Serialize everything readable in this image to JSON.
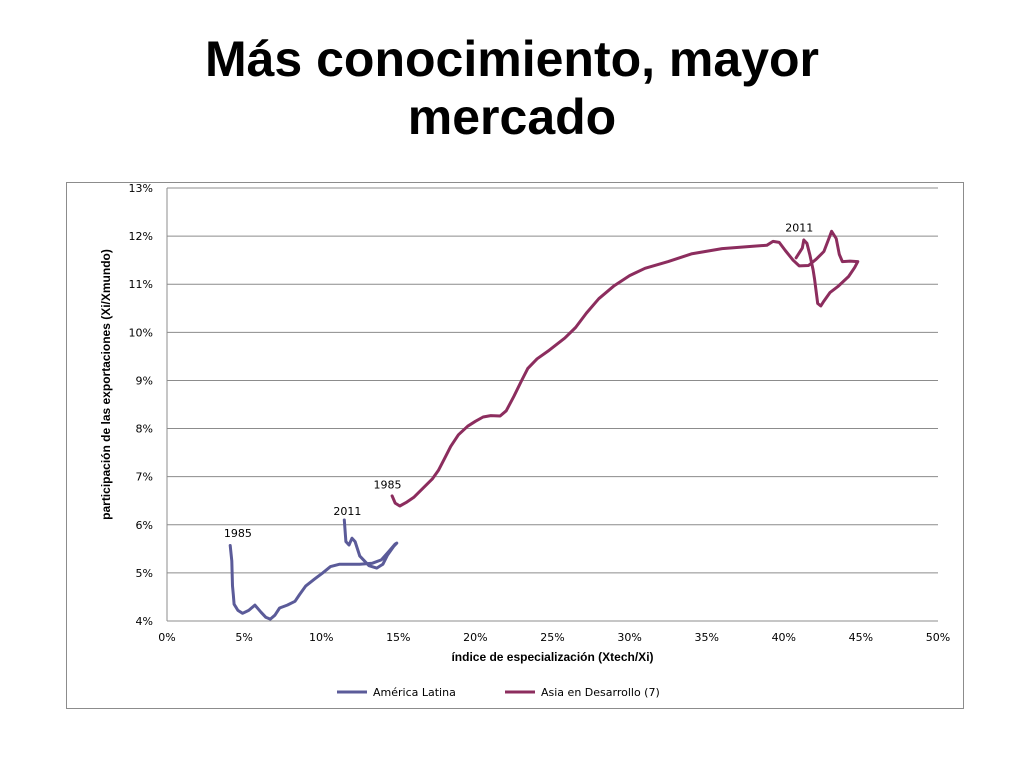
{
  "slide": {
    "title_line1": "Más conocimiento, mayor",
    "title_line2": "mercado"
  },
  "chart_data": {
    "type": "line",
    "xlabel": "índice de especialización (Xtech/Xi)",
    "ylabel": "participación de las exportaciones (Xi/Xmundo)",
    "xlim": [
      0,
      0.5
    ],
    "ylim": [
      0.04,
      0.13
    ],
    "x_ticks": [
      {
        "value": 0.0,
        "label": "0%"
      },
      {
        "value": 0.05,
        "label": "5%"
      },
      {
        "value": 0.1,
        "label": "10%"
      },
      {
        "value": 0.15,
        "label": "15%"
      },
      {
        "value": 0.2,
        "label": "20%"
      },
      {
        "value": 0.25,
        "label": "25%"
      },
      {
        "value": 0.3,
        "label": "30%"
      },
      {
        "value": 0.35,
        "label": "35%"
      },
      {
        "value": 0.4,
        "label": "40%"
      },
      {
        "value": 0.45,
        "label": "45%"
      },
      {
        "value": 0.5,
        "label": "50%"
      }
    ],
    "y_ticks": [
      {
        "value": 0.04,
        "label": "4%"
      },
      {
        "value": 0.05,
        "label": "5%"
      },
      {
        "value": 0.06,
        "label": "6%"
      },
      {
        "value": 0.07,
        "label": "7%"
      },
      {
        "value": 0.08,
        "label": "8%"
      },
      {
        "value": 0.09,
        "label": "9%"
      },
      {
        "value": 0.1,
        "label": "10%"
      },
      {
        "value": 0.11,
        "label": "11%"
      },
      {
        "value": 0.12,
        "label": "12%"
      },
      {
        "value": 0.13,
        "label": "13%"
      }
    ],
    "grid": "horizontal",
    "legend_position": "bottom",
    "series": [
      {
        "name": "América Latina",
        "color": "#5b5b99",
        "points": [
          [
            0.041,
            0.0557
          ],
          [
            0.042,
            0.0525
          ],
          [
            0.0425,
            0.0473
          ],
          [
            0.043,
            0.0455
          ],
          [
            0.0435,
            0.0435
          ],
          [
            0.046,
            0.0422
          ],
          [
            0.049,
            0.0416
          ],
          [
            0.053,
            0.0422
          ],
          [
            0.057,
            0.0433
          ],
          [
            0.061,
            0.0418
          ],
          [
            0.064,
            0.0408
          ],
          [
            0.067,
            0.0404
          ],
          [
            0.07,
            0.0412
          ],
          [
            0.073,
            0.0427
          ],
          [
            0.078,
            0.0433
          ],
          [
            0.083,
            0.0441
          ],
          [
            0.086,
            0.0455
          ],
          [
            0.09,
            0.0473
          ],
          [
            0.096,
            0.0488
          ],
          [
            0.101,
            0.05
          ],
          [
            0.106,
            0.0513
          ],
          [
            0.112,
            0.0518
          ],
          [
            0.118,
            0.0518
          ],
          [
            0.125,
            0.0518
          ],
          [
            0.133,
            0.052
          ],
          [
            0.139,
            0.0527
          ],
          [
            0.144,
            0.0545
          ],
          [
            0.148,
            0.056
          ],
          [
            0.149,
            0.0562
          ],
          [
            0.147,
            0.0555
          ],
          [
            0.143,
            0.0537
          ],
          [
            0.14,
            0.0518
          ],
          [
            0.136,
            0.051
          ],
          [
            0.131,
            0.0515
          ],
          [
            0.125,
            0.0535
          ],
          [
            0.122,
            0.0565
          ],
          [
            0.12,
            0.0572
          ],
          [
            0.118,
            0.0558
          ],
          [
            0.116,
            0.0565
          ],
          [
            0.115,
            0.061
          ]
        ]
      },
      {
        "name": "Asia en Desarrollo (7)",
        "color": "#8c2d5e",
        "points": [
          [
            0.146,
            0.066
          ],
          [
            0.148,
            0.0645
          ],
          [
            0.151,
            0.0639
          ],
          [
            0.155,
            0.0646
          ],
          [
            0.16,
            0.0657
          ],
          [
            0.166,
            0.0676
          ],
          [
            0.172,
            0.0695
          ],
          [
            0.176,
            0.0713
          ],
          [
            0.18,
            0.0738
          ],
          [
            0.184,
            0.0763
          ],
          [
            0.189,
            0.0787
          ],
          [
            0.195,
            0.0805
          ],
          [
            0.2,
            0.0815
          ],
          [
            0.205,
            0.0824
          ],
          [
            0.21,
            0.0827
          ],
          [
            0.216,
            0.0826
          ],
          [
            0.22,
            0.0837
          ],
          [
            0.225,
            0.0867
          ],
          [
            0.23,
            0.09
          ],
          [
            0.234,
            0.0925
          ],
          [
            0.24,
            0.0945
          ],
          [
            0.248,
            0.0963
          ],
          [
            0.258,
            0.0988
          ],
          [
            0.265,
            0.101
          ],
          [
            0.272,
            0.104
          ],
          [
            0.28,
            0.107
          ],
          [
            0.29,
            0.1097
          ],
          [
            0.3,
            0.1118
          ],
          [
            0.31,
            0.1133
          ],
          [
            0.325,
            0.1147
          ],
          [
            0.34,
            0.1163
          ],
          [
            0.36,
            0.1174
          ],
          [
            0.38,
            0.1179
          ],
          [
            0.389,
            0.1181
          ],
          [
            0.393,
            0.1189
          ],
          [
            0.397,
            0.1187
          ],
          [
            0.401,
            0.117
          ],
          [
            0.406,
            0.115
          ],
          [
            0.41,
            0.1138
          ],
          [
            0.416,
            0.1139
          ],
          [
            0.421,
            0.1152
          ],
          [
            0.426,
            0.1168
          ],
          [
            0.429,
            0.1193
          ],
          [
            0.431,
            0.121
          ],
          [
            0.434,
            0.1195
          ],
          [
            0.436,
            0.1162
          ],
          [
            0.438,
            0.1147
          ],
          [
            0.443,
            0.1148
          ],
          [
            0.448,
            0.1147
          ],
          [
            0.446,
            0.1135
          ],
          [
            0.442,
            0.1116
          ],
          [
            0.435,
            0.1095
          ],
          [
            0.43,
            0.1083
          ],
          [
            0.426,
            0.1065
          ],
          [
            0.424,
            0.1055
          ],
          [
            0.422,
            0.106
          ],
          [
            0.42,
            0.111
          ],
          [
            0.419,
            0.113
          ],
          [
            0.417,
            0.116
          ],
          [
            0.415,
            0.1185
          ],
          [
            0.413,
            0.1192
          ],
          [
            0.412,
            0.1175
          ],
          [
            0.41,
            0.1165
          ],
          [
            0.408,
            0.1155
          ]
        ]
      }
    ],
    "annotations": [
      {
        "text": "1985",
        "x": 0.046,
        "y": 0.0575
      },
      {
        "text": "2011",
        "x": 0.117,
        "y": 0.062
      },
      {
        "text": "1985",
        "x": 0.143,
        "y": 0.0675
      },
      {
        "text": "2011",
        "x": 0.41,
        "y": 0.121
      }
    ]
  }
}
